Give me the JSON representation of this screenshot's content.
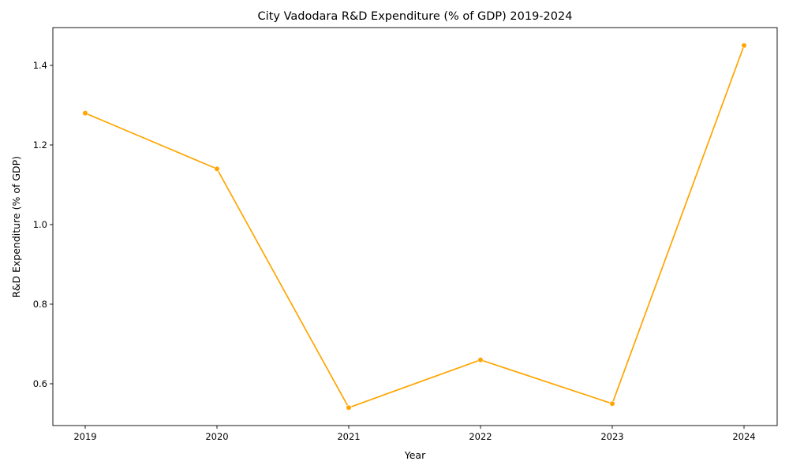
{
  "chart_data": {
    "type": "line",
    "title": "City Vadodara R&D Expenditure (% of GDP) 2019-2024",
    "xlabel": "Year",
    "ylabel": "R&D Expenditure (% of GDP)",
    "x": [
      "2019",
      "2020",
      "2021",
      "2022",
      "2023",
      "2024"
    ],
    "series": [
      {
        "values": [
          1.28,
          1.14,
          0.54,
          0.66,
          0.55,
          1.45
        ],
        "color": "#FFA500"
      }
    ],
    "yticks": [
      "0.6",
      "0.8",
      "1.0",
      "1.2",
      "1.4"
    ],
    "ylim": [
      0.495,
      1.495
    ],
    "grid": false,
    "legend": "none",
    "marker": "circle"
  }
}
